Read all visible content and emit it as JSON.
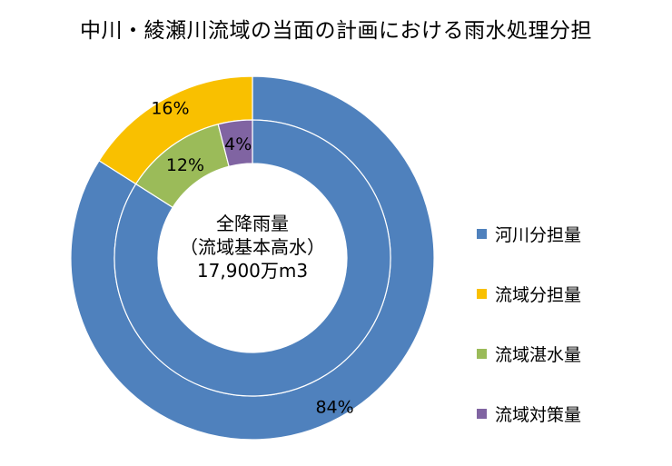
{
  "title": "中川・綾瀬川流域の当面の計画における雨水処理分担",
  "center_label": {
    "line1": "全降雨量",
    "line2": "（流域基本高水）",
    "line3": "17,900万m3"
  },
  "chart_data": {
    "type": "pie",
    "title": "中川・綾瀬川流域の当面の計画における雨水処理分担",
    "legend_position": "right",
    "series": [
      {
        "ring": "outer",
        "categories": [
          "河川分担量",
          "流域分担量"
        ],
        "values": [
          84,
          16
        ],
        "labels": [
          "84%",
          "16%"
        ],
        "colors": [
          "#4f81bd",
          "#f9c000"
        ]
      },
      {
        "ring": "inner",
        "categories": [
          "河川分担量",
          "流域湛水量",
          "流域対策量"
        ],
        "values": [
          84,
          12,
          4
        ],
        "labels": [
          "",
          "12%",
          "4%"
        ],
        "colors": [
          "#4f81bd",
          "#9bbb59",
          "#8064a2"
        ]
      }
    ],
    "legend": [
      {
        "label": "河川分担量",
        "color": "#4f81bd"
      },
      {
        "label": "流域分担量",
        "color": "#f9c000"
      },
      {
        "label": "流域湛水量",
        "color": "#9bbb59"
      },
      {
        "label": "流域対策量",
        "color": "#8064a2"
      }
    ]
  }
}
